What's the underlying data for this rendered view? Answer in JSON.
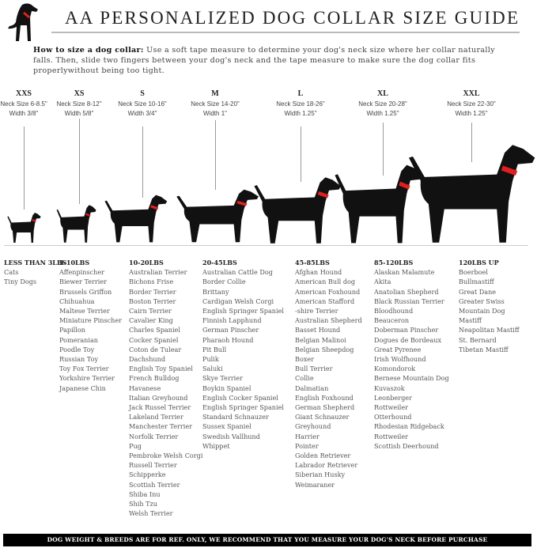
{
  "header": {
    "title": "AA PERSONALIZED DOG COLLAR SIZE GUIDE",
    "logo_icon": "dog-silhouette-red-collar",
    "intro_bold": "How to size a dog collar:",
    "intro_text": " Use a soft tape measure to determine your dog's neck size where her collar naturally falls. Then, slide two fingers between your dog's neck and the tape measure to make sure the dog collar fits properlywithout being too tight."
  },
  "colors": {
    "collar": "#e0201e",
    "silhouette": "#111111",
    "footer_bg": "#000000"
  },
  "sizes": [
    {
      "code": "XXS",
      "neck": "Neck Size 6-8.5\"",
      "width": "Width 3/8\""
    },
    {
      "code": "XS",
      "neck": "Neck Size 8-12\"",
      "width": "Width 5/8\""
    },
    {
      "code": "S",
      "neck": "Neck Size 10-16\"",
      "width": "Width 3/4\""
    },
    {
      "code": "M",
      "neck": "Neck Size 14-20\"",
      "width": "Width 1\""
    },
    {
      "code": "L",
      "neck": "Neck Size 18-26\"",
      "width": "Width 1.25\""
    },
    {
      "code": "XL",
      "neck": "Neck Size 20-28\"",
      "width": "Width 1.25\""
    },
    {
      "code": "XXL",
      "neck": "Neck Size 22-30\"",
      "width": "Width 1.25\""
    }
  ],
  "weight_groups": [
    {
      "heading": "LESS THAN 3LBS",
      "breeds": [
        "Cats",
        "Tiny Dogs"
      ]
    },
    {
      "heading": "3-10LBS",
      "breeds": [
        "Affenpinscher",
        "Biewer Terrier",
        "Brussels Griffon",
        "Chihuahua",
        "Maltese Terrier",
        "Miniature Pinscher",
        "Papillon",
        "Pomeranian",
        "Poodle Toy",
        "Russian Toy",
        "Toy Fox Terrier",
        "Yorkshire Terrier",
        "Japanese Chin"
      ]
    },
    {
      "heading": "10-20LBS",
      "breeds": [
        "Australian Terrier",
        "Bichons Frise",
        "Border Terrier",
        "Boston Terrier",
        "Cairn Terrier",
        "Cavalier King",
        "Charles Spaniel",
        "Cocker Spaniel",
        "Coton de Tulear",
        "Dachshund",
        "English Toy Spaniel",
        "French Bulldog",
        "Havanese",
        "Italian Greyhound",
        "Jack Russel Terrier",
        "Lakeland Terrier",
        "Manchester Terrier",
        "Norfolk Terrier",
        "Pug",
        "Pembroke Welsh Corgi",
        "Russell Terrier",
        "Schipperke",
        "Scottish Terrier",
        "Shiba Inu",
        "Shih Tzu",
        "Welsh Terrier"
      ]
    },
    {
      "heading": "20-45LBS",
      "breeds": [
        "Australian Cattle Dog",
        "Border Collie",
        "Brittany",
        "Cardigan Welsh Corgi",
        "English Springer Spaniel",
        "Finnish Lapphund",
        "German Pinscher",
        "Pharaoh Hound",
        "Pit Bull",
        "Pulik",
        "Saluki",
        "Skye Terrier",
        "Boykin Spaniel",
        "English Cocker Spaniel",
        "English Springer Spaniel",
        "Standard Schnauzer",
        "Sussex Spaniel",
        "Swedish Vallhund",
        "Whippet"
      ]
    },
    {
      "heading": "45-85LBS",
      "breeds": [
        "Afghan Hound",
        "American Bull dog",
        "American Foxhound",
        "American Stafford",
        "-shire Terrier",
        "Australian Shepherd",
        "Basset Hound",
        "Belgian Malinoi",
        "Belgian Sheepdog",
        "Boxer",
        "Bull Terrier",
        "Collie",
        "Dalmatian",
        "English Foxhound",
        "German Shepherd",
        "Giant Schnauzer",
        "Greyhound",
        "Harrier",
        "Pointer",
        "Golden Retriever",
        "Labrador Retriever",
        "Siberian Husky",
        "Weimaraner"
      ]
    },
    {
      "heading": "85-120LBS",
      "breeds": [
        "Alaskan Malamute",
        "Akita",
        "Anatolian Shepherd",
        "Black Russian Terrier",
        "Bloodhound",
        "Beauceron",
        "Doberman Pinscher",
        "Dogues de Bordeaux",
        "Great Pyrenee",
        "Irish Wolfhound",
        "Komondorok",
        "Bernese Mountain Dog",
        "Kuvaszok",
        "Leonberger",
        "Rottweiler",
        "Otterhound",
        "Rhodesian Ridgeback",
        "Rottweiler",
        "Scottish Deerhound"
      ]
    },
    {
      "heading": "120LBS UP",
      "breeds": [
        "Boerboel",
        "Bullmastiff",
        "Great Dane",
        "Greater Swiss",
        "Mountain Dog",
        "Mastiff",
        "Neapolitan Mastiff",
        "St. Bernard",
        "Tibetan Mastiff"
      ]
    }
  ],
  "footer": {
    "disclaimer": "DOG WEIGHT & BREEDS ARE FOR REF. ONLY, WE RECOMMEND THAT YOU MEASURE YOUR DOG'S NECK BEFORE PURCHASE"
  }
}
